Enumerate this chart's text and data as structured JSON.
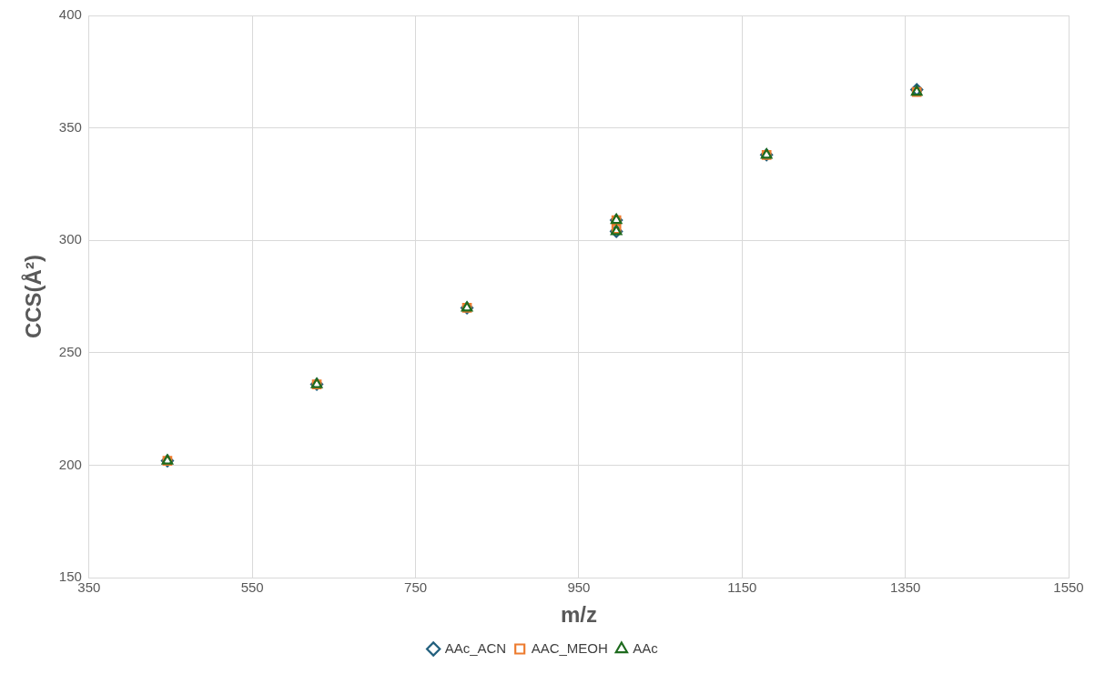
{
  "chart_data": {
    "type": "scatter",
    "xlabel": "m/z",
    "ylabel": "CCS(Å²)",
    "xlim": [
      350,
      1550
    ],
    "xticks": [
      350,
      550,
      750,
      950,
      1150,
      1350,
      1550
    ],
    "ylim": [
      150,
      400
    ],
    "yticks": [
      150,
      200,
      250,
      300,
      350,
      400
    ],
    "grid": true,
    "legend": "bottom",
    "series": [
      {
        "name": "AAc_ACN",
        "color": "#215f7d",
        "marker": "diamond",
        "x": [
          446,
          629,
          813,
          996,
          996,
          1180,
          1364
        ],
        "values": [
          202,
          236,
          270,
          309,
          304,
          338,
          367
        ]
      },
      {
        "name": "AAC_MEOH",
        "color": "#ed7d31",
        "marker": "square",
        "x": [
          446,
          629,
          813,
          996,
          996,
          1180,
          1364
        ],
        "values": [
          202,
          236,
          270,
          309,
          305,
          338,
          366
        ]
      },
      {
        "name": "AAc",
        "color": "#1e6b1e",
        "marker": "triangle",
        "x": [
          446,
          629,
          813,
          996,
          996,
          1180,
          1364
        ],
        "values": [
          202,
          236,
          270,
          309,
          304,
          338,
          366
        ]
      }
    ]
  }
}
